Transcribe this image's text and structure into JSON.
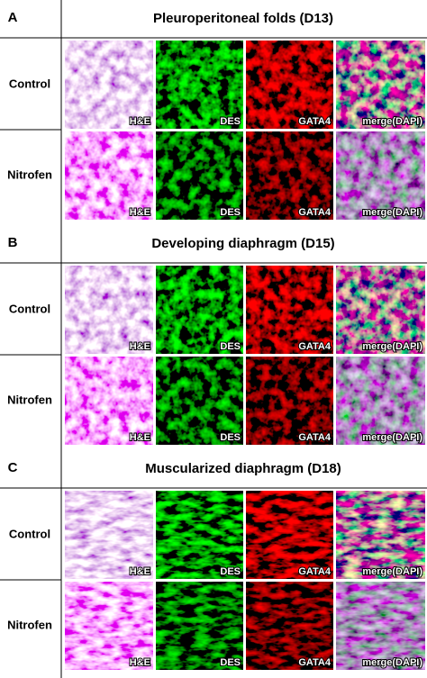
{
  "sections": [
    {
      "letter": "A",
      "title": "Pleuroperitoneal folds (D13)",
      "rows": [
        {
          "label": "Control",
          "panels": [
            "H&E",
            "DES",
            "GATA4",
            "merge(DAPI)"
          ]
        },
        {
          "label": "Nitrofen",
          "panels": [
            "H&E",
            "DES",
            "GATA4",
            "merge(DAPI)"
          ]
        }
      ]
    },
    {
      "letter": "B",
      "title": "Developing diaphragm (D15)",
      "rows": [
        {
          "label": "Control",
          "panels": [
            "H&E",
            "DES",
            "GATA4",
            "merge(DAPI)"
          ]
        },
        {
          "label": "Nitrofen",
          "panels": [
            "H&E",
            "DES",
            "GATA4",
            "merge(DAPI)"
          ]
        }
      ]
    },
    {
      "letter": "C",
      "title": "Muscularized diaphragm (D18)",
      "rows": [
        {
          "label": "Control",
          "panels": [
            "H&E",
            "DES",
            "GATA4",
            "merge(DAPI)"
          ]
        },
        {
          "label": "Nitrofen",
          "panels": [
            "H&E",
            "DES",
            "GATA4",
            "merge(DAPI)"
          ]
        }
      ]
    }
  ]
}
